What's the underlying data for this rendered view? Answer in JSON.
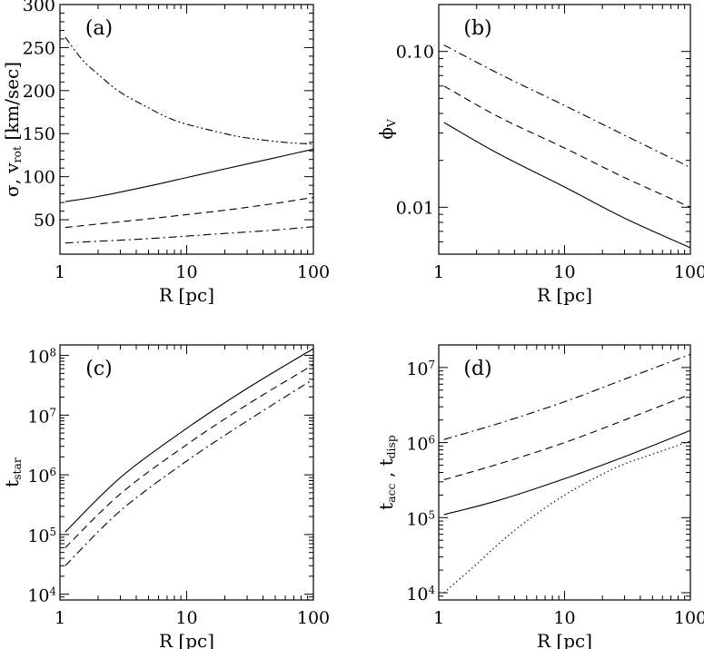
{
  "chart_data": [
    {
      "type": "line",
      "panel": "(a)",
      "xlabel": "R [pc]",
      "ylabel": "σ, v_rot [km/sec]",
      "xscale": "log",
      "yscale": "linear",
      "xlim": [
        1,
        100
      ],
      "ylim": [
        10,
        300
      ],
      "xticks": [
        1,
        10,
        100
      ],
      "xtick_labels": [
        "1",
        "10",
        "100"
      ],
      "yticks": [
        50,
        100,
        150,
        200,
        250,
        300
      ],
      "ytick_labels": [
        "50",
        "100",
        "150",
        "200",
        "250",
        "300"
      ],
      "series": [
        {
          "style": "solid",
          "x": [
            1.1,
            2,
            5,
            10,
            20,
            50,
            100
          ],
          "y": [
            71,
            77,
            89,
            99,
            109,
            122,
            132
          ]
        },
        {
          "style": "dashed",
          "x": [
            1.1,
            2,
            5,
            10,
            20,
            50,
            100
          ],
          "y": [
            41,
            45,
            51,
            56,
            61,
            69,
            76
          ]
        },
        {
          "style": "dashdot",
          "x": [
            1.1,
            2,
            5,
            10,
            20,
            50,
            100
          ],
          "y": [
            23,
            25,
            28,
            31,
            34,
            38,
            42
          ]
        },
        {
          "style": "dashdotdot",
          "x": [
            1.1,
            1.5,
            2,
            3,
            5,
            7,
            10,
            20,
            30,
            50,
            70,
            100
          ],
          "y": [
            262,
            236,
            219,
            198,
            180,
            169,
            161,
            150,
            145,
            141,
            139,
            138
          ]
        }
      ]
    },
    {
      "type": "line",
      "panel": "(b)",
      "xlabel": "R [pc]",
      "ylabel": "ϕ_V",
      "xscale": "log",
      "yscale": "log",
      "xlim": [
        1,
        100
      ],
      "ylim": [
        0.005,
        0.2
      ],
      "xticks": [
        1,
        10,
        100
      ],
      "xtick_labels": [
        "1",
        "10",
        "100"
      ],
      "yticks": [
        0.01,
        0.1
      ],
      "ytick_labels": [
        "0.01",
        "0.10"
      ],
      "series": [
        {
          "style": "solid",
          "x": [
            1.1,
            3,
            10,
            30,
            100
          ],
          "y": [
            0.035,
            0.022,
            0.0135,
            0.0085,
            0.0055
          ]
        },
        {
          "style": "dashed",
          "x": [
            1.1,
            3,
            10,
            30,
            100
          ],
          "y": [
            0.06,
            0.038,
            0.024,
            0.0155,
            0.01
          ]
        },
        {
          "style": "dashdot",
          "x": [
            1.1,
            3,
            10,
            30,
            100
          ],
          "y": [
            0.11,
            0.072,
            0.045,
            0.029,
            0.018
          ]
        }
      ]
    },
    {
      "type": "line",
      "panel": "(c)",
      "xlabel": "R [pc]",
      "ylabel": "t_star",
      "xscale": "log",
      "yscale": "log",
      "xlim": [
        1,
        100
      ],
      "ylim": [
        8000,
        150000000
      ],
      "xticks": [
        1,
        10,
        100
      ],
      "xtick_labels": [
        "1",
        "10",
        "100"
      ],
      "yticks": [
        10000,
        100000,
        1000000,
        10000000,
        100000000
      ],
      "ytick_labels": [
        "10^4",
        "10^5",
        "10^6",
        "10^7",
        "10^8"
      ],
      "series": [
        {
          "style": "solid",
          "x": [
            1.1,
            3,
            10,
            30,
            100
          ],
          "y": [
            110000,
            900000,
            6000000,
            28000000,
            130000000
          ]
        },
        {
          "style": "dashed",
          "x": [
            1.1,
            3,
            10,
            30,
            100
          ],
          "y": [
            60000,
            480000,
            3200000,
            15000000,
            70000000
          ]
        },
        {
          "style": "dashdot",
          "x": [
            1.1,
            3,
            10,
            30,
            100
          ],
          "y": [
            30000,
            250000,
            1700000,
            8000000,
            40000000
          ]
        }
      ]
    },
    {
      "type": "line",
      "panel": "(d)",
      "xlabel": "R [pc]",
      "ylabel": "t_acc , t_disp",
      "xscale": "log",
      "yscale": "log",
      "xlim": [
        1,
        100
      ],
      "ylim": [
        8000,
        20000000
      ],
      "xticks": [
        1,
        10,
        100
      ],
      "xtick_labels": [
        "1",
        "10",
        "100"
      ],
      "yticks": [
        10000,
        100000,
        1000000,
        10000000
      ],
      "ytick_labels": [
        "10^4",
        "10^5",
        "10^6",
        "10^7"
      ],
      "series": [
        {
          "style": "solid",
          "x": [
            1.1,
            3,
            10,
            30,
            100
          ],
          "y": [
            110000,
            170000,
            330000,
            650000,
            1450000
          ]
        },
        {
          "style": "dashed",
          "x": [
            1.1,
            3,
            10,
            30,
            100
          ],
          "y": [
            320000,
            520000,
            1000000,
            2000000,
            4400000
          ]
        },
        {
          "style": "dashdot",
          "x": [
            1.1,
            3,
            10,
            30,
            100
          ],
          "y": [
            1100000,
            1800000,
            3500000,
            7000000,
            15000000
          ]
        },
        {
          "style": "dotted",
          "x": [
            1.1,
            2,
            3,
            5,
            10,
            20,
            30,
            50,
            100
          ],
          "y": [
            10000,
            24000,
            45000,
            90000,
            200000,
            380000,
            520000,
            700000,
            1050000
          ]
        }
      ]
    }
  ]
}
